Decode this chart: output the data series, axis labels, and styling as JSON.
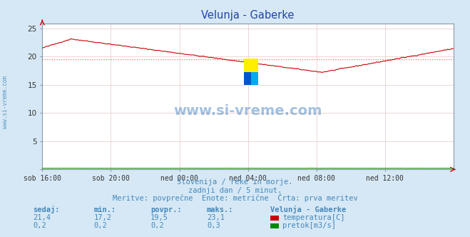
{
  "title": "Velunja - Gaberke",
  "bg_color": "#d6e8f5",
  "plot_bg_color": "#ffffff",
  "x_labels": [
    "sob 16:00",
    "sob 20:00",
    "ned 00:00",
    "ned 04:00",
    "ned 08:00",
    "ned 12:00"
  ],
  "x_ticks": [
    0,
    48,
    96,
    144,
    192,
    240
  ],
  "n_points": 289,
  "ylim": [
    0,
    25.8
  ],
  "yticks": [
    0,
    5,
    10,
    15,
    20,
    25
  ],
  "grid_color": "#e8d0d0",
  "temp_color": "#cc0000",
  "flow_color": "#008800",
  "avg_line_color": "#ff6666",
  "watermark_text": "www.si-vreme.com",
  "watermark_color": "#3377bb",
  "subtitle1": "Slovenija / reke in morje.",
  "subtitle2": "zadnji dan / 5 minut.",
  "subtitle3": "Meritve: povprečne  Enote: metrične  Črta: prva meritev",
  "subtitle_color": "#4488bb",
  "table_header": [
    "sedaj:",
    "min.:",
    "povpr.:",
    "maks.:"
  ],
  "table_values_temp": [
    "21,4",
    "17,2",
    "19,5",
    "23,1"
  ],
  "table_values_flow": [
    "0,2",
    "0,2",
    "0,2",
    "0,3"
  ],
  "legend_title": "Velunja - Gaberke",
  "legend_temp": "temperatura[C]",
  "legend_flow": "pretok[m3/s]",
  "table_color": "#4488bb",
  "axis_color": "#8899aa",
  "temp_avg": 19.5,
  "temp_min": 17.2,
  "temp_max": 23.1,
  "temp_start": 21.4,
  "ylabel_text": "www.si-vreme.com",
  "ylabel_color": "#4488bb",
  "logo_yellow": "#ffee00",
  "logo_blue_dark": "#0055cc",
  "logo_blue_light": "#00aaee"
}
